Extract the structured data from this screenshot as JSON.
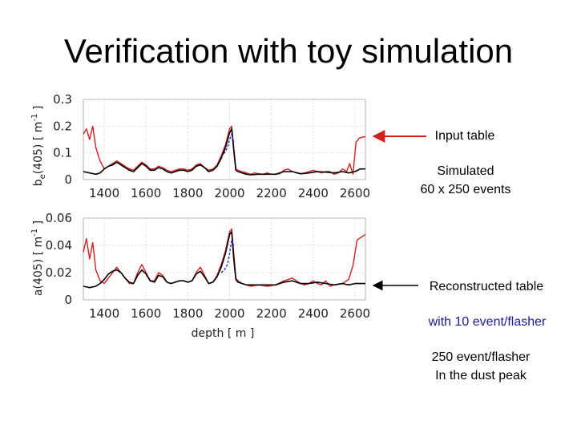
{
  "slide": {
    "title": "Verification with toy simulation",
    "annotations": {
      "input": "Input table",
      "simulated_line1": "Simulated",
      "simulated_line2": "60 x 250 events",
      "reconstructed": "Reconstructed table",
      "with10": "with 10 event/flasher",
      "e250_line1": "250 event/flasher",
      "e250_line2": "In the dust peak"
    }
  },
  "colors": {
    "input": "#d42020",
    "reconstructed10": "#000000",
    "reconstructed250": "#2a2ad0",
    "arrow_red": "#d42020"
  },
  "chart_data": [
    {
      "type": "line",
      "ylabel": "b_e(405) [ m^-1 ]",
      "ylabel_main": "b",
      "ylabel_sub": "e",
      "ylabel_rest": "(405) [ m",
      "ylabel_exp": "-1",
      "ylabel_close": " ]",
      "xlim": [
        1300,
        2650
      ],
      "ylim": [
        0,
        0.3
      ],
      "xticks": [
        1400,
        1600,
        1800,
        2000,
        2200,
        2400,
        2600
      ],
      "yticks": [
        0,
        0.1,
        0.2,
        0.3
      ],
      "ytick_labels": [
        "0",
        "0.1",
        "0.2",
        "0.3"
      ],
      "series": [
        {
          "name": "input",
          "color": "#d42020",
          "style": "solid",
          "x": [
            1300,
            1315,
            1330,
            1345,
            1360,
            1380,
            1400,
            1420,
            1440,
            1460,
            1480,
            1500,
            1520,
            1540,
            1560,
            1580,
            1600,
            1620,
            1640,
            1660,
            1680,
            1700,
            1720,
            1740,
            1760,
            1780,
            1800,
            1820,
            1840,
            1860,
            1880,
            1900,
            1920,
            1940,
            1960,
            1980,
            2000,
            2010,
            2020,
            2030,
            2040,
            2060,
            2080,
            2100,
            2120,
            2140,
            2160,
            2180,
            2200,
            2220,
            2240,
            2260,
            2280,
            2300,
            2320,
            2340,
            2360,
            2380,
            2400,
            2420,
            2440,
            2460,
            2480,
            2500,
            2520,
            2540,
            2560,
            2575,
            2590,
            2605,
            2620,
            2640,
            2650
          ],
          "y": [
            0.17,
            0.19,
            0.15,
            0.2,
            0.12,
            0.07,
            0.04,
            0.05,
            0.06,
            0.07,
            0.06,
            0.05,
            0.04,
            0.035,
            0.05,
            0.065,
            0.055,
            0.04,
            0.04,
            0.05,
            0.045,
            0.035,
            0.03,
            0.035,
            0.04,
            0.04,
            0.035,
            0.04,
            0.055,
            0.06,
            0.045,
            0.035,
            0.04,
            0.055,
            0.09,
            0.13,
            0.19,
            0.2,
            0.12,
            0.04,
            0.035,
            0.03,
            0.025,
            0.02,
            0.025,
            0.022,
            0.02,
            0.025,
            0.02,
            0.02,
            0.022,
            0.035,
            0.04,
            0.03,
            0.025,
            0.022,
            0.025,
            0.03,
            0.035,
            0.03,
            0.025,
            0.03,
            0.03,
            0.02,
            0.025,
            0.04,
            0.03,
            0.06,
            0.02,
            0.14,
            0.155,
            0.16,
            0.16
          ]
        },
        {
          "name": "reconstructed (10 event/flasher)",
          "color": "#000000",
          "style": "solid",
          "x": [
            1300,
            1330,
            1360,
            1380,
            1400,
            1420,
            1440,
            1460,
            1480,
            1500,
            1520,
            1540,
            1560,
            1580,
            1600,
            1620,
            1640,
            1660,
            1680,
            1700,
            1720,
            1740,
            1760,
            1780,
            1800,
            1820,
            1840,
            1860,
            1880,
            1900,
            1920,
            1940,
            1960,
            1980,
            2000,
            2010,
            2020,
            2030,
            2040,
            2060,
            2080,
            2100,
            2140,
            2180,
            2220,
            2260,
            2300,
            2340,
            2380,
            2420,
            2460,
            2500,
            2540,
            2570,
            2600,
            2625,
            2650
          ],
          "y": [
            0.03,
            0.025,
            0.02,
            0.025,
            0.04,
            0.05,
            0.055,
            0.065,
            0.055,
            0.045,
            0.035,
            0.03,
            0.045,
            0.06,
            0.05,
            0.035,
            0.035,
            0.045,
            0.04,
            0.03,
            0.025,
            0.03,
            0.035,
            0.035,
            0.03,
            0.035,
            0.05,
            0.055,
            0.045,
            0.03,
            0.035,
            0.05,
            0.08,
            0.12,
            0.175,
            0.19,
            0.11,
            0.035,
            0.03,
            0.025,
            0.02,
            0.018,
            0.02,
            0.02,
            0.02,
            0.03,
            0.03,
            0.022,
            0.025,
            0.03,
            0.028,
            0.025,
            0.03,
            0.025,
            0.03,
            0.04,
            0.04
          ]
        },
        {
          "name": "reconstructed (250 event/flasher)",
          "color": "#2a2ad0",
          "style": "dashed",
          "x": [
            1960,
            1975,
            1990,
            2000,
            2010,
            2020
          ],
          "y": [
            0.085,
            0.1,
            0.12,
            0.15,
            0.17,
            0.14
          ]
        }
      ]
    },
    {
      "type": "line",
      "xlabel": "depth [ m ]",
      "ylabel": "a(405) [ m^-1 ]",
      "ylabel_main": "a(405) [ m",
      "ylabel_exp": "-1",
      "ylabel_close": " ]",
      "xlim": [
        1300,
        2650
      ],
      "ylim": [
        0,
        0.06
      ],
      "xticks": [
        1400,
        1600,
        1800,
        2000,
        2200,
        2400,
        2600
      ],
      "yticks": [
        0,
        0.02,
        0.04,
        0.06
      ],
      "ytick_labels": [
        "0",
        "0.02",
        "0.04",
        "0.06"
      ],
      "series": [
        {
          "name": "input",
          "color": "#d42020",
          "style": "solid",
          "x": [
            1300,
            1315,
            1330,
            1345,
            1360,
            1380,
            1400,
            1420,
            1440,
            1460,
            1480,
            1500,
            1520,
            1540,
            1560,
            1580,
            1600,
            1620,
            1640,
            1660,
            1680,
            1700,
            1720,
            1740,
            1760,
            1780,
            1800,
            1820,
            1840,
            1860,
            1880,
            1900,
            1920,
            1940,
            1960,
            1980,
            2000,
            2010,
            2020,
            2030,
            2040,
            2060,
            2080,
            2100,
            2140,
            2180,
            2220,
            2260,
            2300,
            2340,
            2360,
            2380,
            2400,
            2420,
            2440,
            2460,
            2480,
            2500,
            2540,
            2570,
            2590,
            2610,
            2630,
            2650
          ],
          "y": [
            0.035,
            0.045,
            0.03,
            0.042,
            0.022,
            0.014,
            0.012,
            0.016,
            0.02,
            0.024,
            0.02,
            0.016,
            0.012,
            0.012,
            0.02,
            0.026,
            0.02,
            0.014,
            0.014,
            0.02,
            0.018,
            0.013,
            0.012,
            0.013,
            0.014,
            0.014,
            0.013,
            0.014,
            0.02,
            0.024,
            0.018,
            0.012,
            0.013,
            0.018,
            0.026,
            0.036,
            0.05,
            0.052,
            0.034,
            0.016,
            0.014,
            0.012,
            0.011,
            0.01,
            0.011,
            0.01,
            0.011,
            0.014,
            0.016,
            0.012,
            0.011,
            0.012,
            0.014,
            0.012,
            0.011,
            0.014,
            0.01,
            0.011,
            0.012,
            0.015,
            0.025,
            0.044,
            0.046,
            0.048
          ]
        },
        {
          "name": "reconstructed (10 event/flasher)",
          "color": "#000000",
          "style": "solid",
          "x": [
            1300,
            1330,
            1360,
            1380,
            1400,
            1420,
            1440,
            1460,
            1480,
            1500,
            1520,
            1540,
            1560,
            1580,
            1600,
            1620,
            1640,
            1660,
            1680,
            1700,
            1720,
            1740,
            1760,
            1780,
            1800,
            1820,
            1840,
            1860,
            1880,
            1900,
            1920,
            1940,
            1960,
            1980,
            2000,
            2010,
            2020,
            2030,
            2040,
            2060,
            2080,
            2100,
            2140,
            2180,
            2220,
            2260,
            2300,
            2340,
            2380,
            2420,
            2460,
            2500,
            2540,
            2570,
            2600,
            2625,
            2650
          ],
          "y": [
            0.01,
            0.009,
            0.01,
            0.012,
            0.015,
            0.019,
            0.021,
            0.022,
            0.02,
            0.016,
            0.013,
            0.012,
            0.018,
            0.022,
            0.019,
            0.014,
            0.013,
            0.018,
            0.017,
            0.013,
            0.012,
            0.013,
            0.014,
            0.014,
            0.013,
            0.014,
            0.019,
            0.021,
            0.017,
            0.012,
            0.013,
            0.017,
            0.024,
            0.034,
            0.048,
            0.05,
            0.03,
            0.015,
            0.013,
            0.012,
            0.011,
            0.011,
            0.011,
            0.011,
            0.011,
            0.013,
            0.014,
            0.012,
            0.012,
            0.013,
            0.012,
            0.011,
            0.012,
            0.011,
            0.012,
            0.012,
            0.012
          ]
        },
        {
          "name": "reconstructed (250 event/flasher)",
          "color": "#2a2ad0",
          "style": "dashed",
          "x": [
            1960,
            1975,
            1990,
            2000,
            2010,
            2020
          ],
          "y": [
            0.02,
            0.022,
            0.026,
            0.034,
            0.044,
            0.04
          ]
        }
      ]
    }
  ]
}
